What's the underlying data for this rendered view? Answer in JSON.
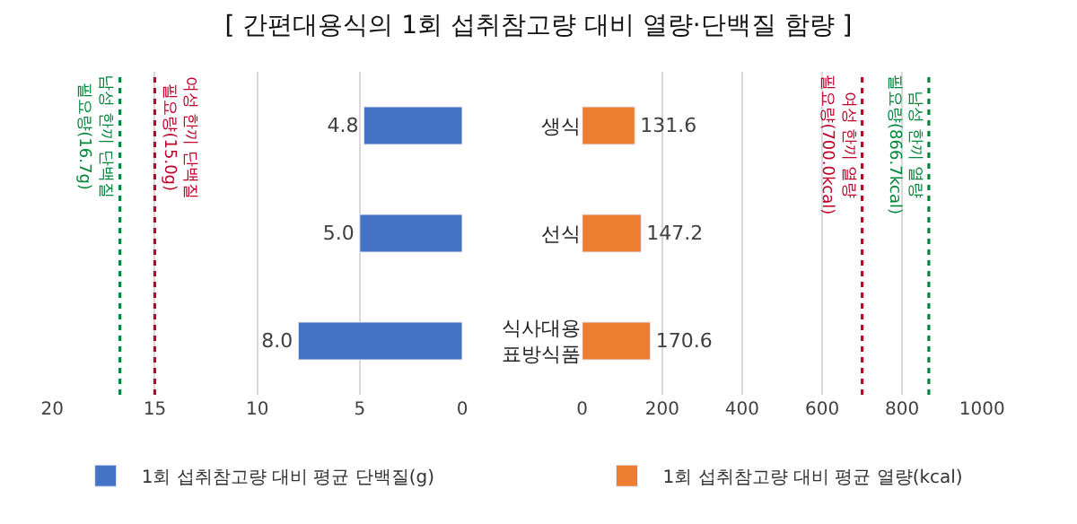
{
  "chart_data": [
    {
      "type": "bar",
      "title": "[ 간편대용식의 1회 섭취참고량 대비 열량·단백질 함량 ]",
      "orientation": "horizontal",
      "categories": [
        null,
        null,
        null
      ],
      "series": [
        {
          "name": "1회 섭취참고량 대비 평균 단백질(g)",
          "color": "#4472c4",
          "values": [
            4.8,
            5.0,
            8.0
          ],
          "value_labels": [
            "4.8",
            "5.0",
            "8.0"
          ]
        }
      ],
      "xlim": [
        20,
        0
      ],
      "xticks": [
        20,
        15,
        10,
        5,
        0
      ],
      "grid": "x",
      "legend": "bottom",
      "tick_labels": "x",
      "ref_lines": [
        {
          "axis": "x",
          "value": 16.7,
          "label": "남성 한끼 단백질 필요량(16.7g)",
          "color": "#00873c",
          "line_style": "dotted"
        },
        {
          "axis": "x",
          "value": 15.0,
          "label": "여성 한끼 단백질 필요량(15.0g)",
          "color": "#c0002a",
          "line_style": "dotted"
        }
      ]
    },
    {
      "type": "bar",
      "orientation": "horizontal",
      "categories": [
        "생식",
        "선식",
        "식사대용 표방식품"
      ],
      "series": [
        {
          "name": "1회 섭취참고량 대비 평균 열량(kcal)",
          "color": "#ed7d31",
          "values": [
            131.6,
            147.2,
            170.6
          ],
          "value_labels": [
            "131.6",
            "147.2",
            "170.6"
          ]
        }
      ],
      "xlim": [
        0,
        1000
      ],
      "xticks": [
        0,
        200,
        400,
        600,
        800,
        1000
      ],
      "grid": "x",
      "legend": "bottom",
      "ref_lines": [
        {
          "axis": "x",
          "value": 700.0,
          "label": "여성 한끼 열량 필요량(700.0kcal)",
          "color": "#c0002a",
          "line_style": "dotted"
        },
        {
          "axis": "x",
          "value": 866.7,
          "label": "남성 한끼 열량 필요량(866.7kcal)",
          "color": "#00873c",
          "line_style": "dotted"
        }
      ]
    }
  ]
}
